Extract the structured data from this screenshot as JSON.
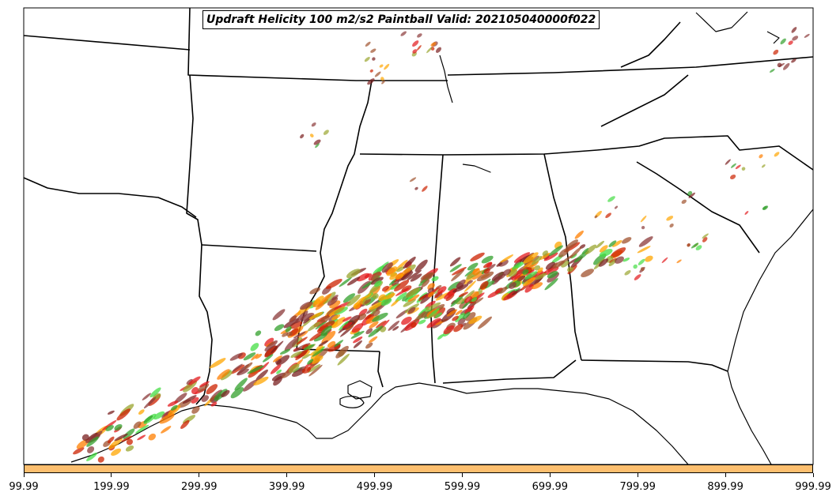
{
  "title": "Updraft Helicity 100 m2/s2 Paintball Valid: 202105040000f022",
  "colorbar": {
    "color": "#fdbf6f",
    "ticks": [
      "99.99",
      "199.99",
      "299.99",
      "399.99",
      "499.99",
      "599.99",
      "699.99",
      "799.99",
      "899.99",
      "999.99"
    ]
  },
  "member_colors": [
    "#e31a1c",
    "#ff7f00",
    "#33a02c",
    "#a0522d",
    "#9aa52f",
    "#ffa500",
    "#7a2020",
    "#44dd44",
    "#8b3a3a",
    "#cc2200"
  ],
  "map": {
    "region": "Southeastern United States",
    "borders": [
      "coastline",
      "state borders"
    ],
    "band_description": "paintball swaths of updraft helicity from east Texas through Louisiana, Mississippi, Alabama, Georgia"
  }
}
